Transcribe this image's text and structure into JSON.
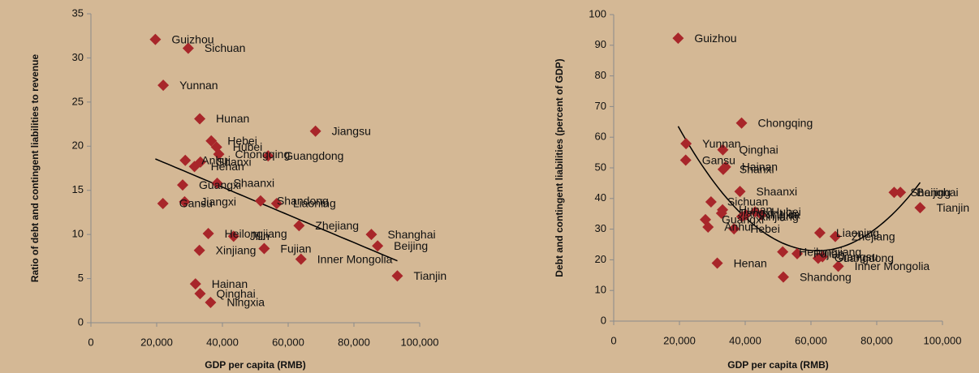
{
  "chart_data": [
    {
      "type": "scatter",
      "x_label": "GDP per capita (RMB)",
      "y_label": "Ratio of debt and contingent liabilities to revenue",
      "xlim": [
        0,
        100000
      ],
      "xticks": [
        0,
        {
          "value": 20000,
          "label": "20,000"
        },
        {
          "value": 40000,
          "label": "40,000"
        },
        {
          "value": 60000,
          "label": "60,000"
        },
        {
          "value": 80000,
          "label": "80,000"
        },
        {
          "value": 100000,
          "label": "100,000"
        }
      ],
      "ylim": [
        0,
        35
      ],
      "yticks": [
        0,
        5,
        10,
        15,
        20,
        25,
        30,
        35
      ],
      "color": "#a8262a",
      "marker": "diamond",
      "trendline": "linear",
      "labels": [
        "Guizhou",
        "Sichuan",
        "Yunnan",
        "Hunan",
        "Hebei",
        "Hubei",
        "Chongqing",
        "Guangdong",
        "Jiangsu",
        "Anhui",
        "Shanxi",
        "Henan",
        "Shaanxi",
        "Guangxi",
        "Jiangxi",
        "Gansu",
        "Shandong",
        "Liaoning",
        "Zhejiang",
        "Shanghai",
        "Beijing",
        "Jilin",
        "Heilongjiang",
        "Xinjiang",
        "Fujian",
        "Inner Mongolia",
        "Tianjin",
        "Hainan",
        "Qinghai",
        "Ningxia"
      ],
      "x": [
        19600,
        29600,
        22000,
        33100,
        36600,
        38200,
        38900,
        53900,
        68300,
        28700,
        33300,
        31500,
        38400,
        27900,
        28500,
        21900,
        51600,
        56500,
        63300,
        85300,
        87200,
        43400,
        35700,
        33000,
        52700,
        63900,
        93200,
        31800,
        33200,
        36400
      ],
      "values": [
        32.1,
        31.1,
        26.9,
        23.1,
        20.6,
        19.9,
        19.1,
        18.9,
        21.7,
        18.4,
        18.2,
        17.7,
        15.8,
        15.6,
        13.7,
        13.5,
        13.8,
        13.5,
        11.0,
        10.0,
        8.7,
        9.8,
        10.1,
        8.2,
        8.4,
        7.2,
        5.3,
        4.4,
        3.3,
        2.3
      ]
    },
    {
      "type": "scatter",
      "x_label": "GDP per capita (RMB)",
      "y_label": "Debt and contingent liabilities (percent of GDP)",
      "xlim": [
        0,
        100000
      ],
      "xticks": [
        0,
        {
          "value": 20000,
          "label": "20,000"
        },
        {
          "value": 40000,
          "label": "40,000"
        },
        {
          "value": 60000,
          "label": "60,000"
        },
        {
          "value": 80000,
          "label": "80,000"
        },
        {
          "value": 100000,
          "label": "100,000"
        }
      ],
      "ylim": [
        0,
        100
      ],
      "yticks": [
        0,
        10,
        20,
        30,
        40,
        50,
        60,
        70,
        80,
        90,
        100
      ],
      "color": "#a8262a",
      "marker": "diamond",
      "trendline": "polynomial2",
      "labels": [
        "Guizhou",
        "Chongqing",
        "Yunnan",
        "Qinghai",
        "Gansu",
        "Shanxi",
        "Hainan",
        "Shaanxi",
        "Sichuan",
        "Hunan",
        "Jiangxi",
        "Hubei",
        "Jilin",
        "Ningxia",
        "Xinjiang",
        "Guangxi",
        "Anhui",
        "Hebei",
        "Henan",
        "Heilongjiang",
        "Fujian",
        "Guangdong",
        "Shandong",
        "Liaoning",
        "Zhejiang",
        "Jiangsu",
        "Inner Mongolia",
        "Beijing",
        "Shanghai",
        "Tianjin"
      ],
      "x": [
        19600,
        38900,
        22000,
        33200,
        21900,
        33300,
        34000,
        38400,
        29600,
        33100,
        32800,
        43000,
        44900,
        40200,
        39000,
        27900,
        28700,
        36600,
        31500,
        51400,
        55800,
        62200,
        51600,
        62700,
        67400,
        63500,
        68300,
        87200,
        85300,
        93200
      ],
      "values": [
        92.3,
        64.6,
        57.9,
        55.9,
        52.5,
        49.5,
        50.3,
        42.3,
        38.9,
        36.3,
        35.2,
        35.6,
        34.7,
        34.7,
        34.1,
        33.1,
        30.7,
        30.1,
        18.9,
        22.6,
        22.0,
        20.5,
        14.4,
        28.8,
        27.6,
        21.0,
        17.9,
        42.0,
        42.0,
        37.0
      ]
    }
  ]
}
